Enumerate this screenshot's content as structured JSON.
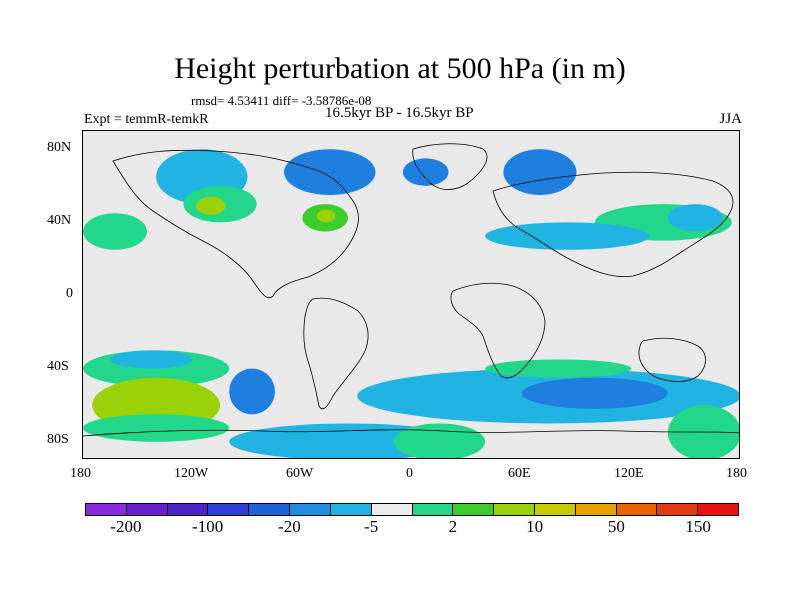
{
  "title": "Height perturbation at 500 hPa (in m)",
  "stats": "rmsd= 4.53411 diff= -3.58786e-08",
  "expt": "Expt = temmR-temkR",
  "period": "16.5kyr BP - 16.5kyr BP",
  "season": "JJA",
  "chart_data": {
    "type": "heatmap",
    "projection": "cylindrical-equidistant",
    "lon_range": [
      -180,
      180
    ],
    "lat_range": [
      -90,
      90
    ],
    "x_tick_labels": [
      "180",
      "120W",
      "60W",
      "0",
      "60E",
      "120E",
      "180"
    ],
    "x_ticks": [
      -180,
      -120,
      -60,
      0,
      60,
      120,
      180
    ],
    "y_tick_labels": [
      "80N",
      "40N",
      "0",
      "40S",
      "80S"
    ],
    "y_ticks": [
      80,
      40,
      0,
      -40,
      -80
    ],
    "colorbar": {
      "colors": [
        "#8a2be2",
        "#6a1fd0",
        "#4b22c8",
        "#2f3fd4",
        "#1e64d8",
        "#1e8ee0",
        "#22b4e0",
        "#ebebeb",
        "#22d68a",
        "#3ccc2c",
        "#9ad20a",
        "#c8c800",
        "#e8a000",
        "#e86400",
        "#e03c10",
        "#e81010"
      ],
      "labels": [
        "-200",
        "-100",
        "-20",
        "-5",
        "2",
        "10",
        "50",
        "150"
      ],
      "label_positions": [
        1,
        3,
        5,
        7,
        9,
        11,
        13,
        15
      ]
    },
    "regions": [
      {
        "level": "lightblue",
        "value": -3,
        "lon": [
          -140,
          -90
        ],
        "lat": [
          50,
          80
        ]
      },
      {
        "level": "blue",
        "value": -8,
        "lon": [
          -70,
          -20
        ],
        "lat": [
          55,
          80
        ]
      },
      {
        "level": "blue",
        "value": -8,
        "lon": [
          -5,
          20
        ],
        "lat": [
          60,
          75
        ]
      },
      {
        "level": "blue",
        "value": -8,
        "lon": [
          50,
          90
        ],
        "lat": [
          55,
          80
        ]
      },
      {
        "level": "lightgreen",
        "value": 5,
        "lon": [
          -125,
          -85
        ],
        "lat": [
          40,
          60
        ]
      },
      {
        "level": "yellowgreen",
        "value": 20,
        "lon": [
          -118,
          -102
        ],
        "lat": [
          44,
          54
        ]
      },
      {
        "level": "green",
        "value": 8,
        "lon": [
          -60,
          -35
        ],
        "lat": [
          35,
          50
        ]
      },
      {
        "level": "yellowgreen",
        "value": 20,
        "lon": [
          -52,
          -42
        ],
        "lat": [
          40,
          47
        ]
      },
      {
        "level": "lightgreen",
        "value": 5,
        "lon": [
          100,
          175
        ],
        "lat": [
          30,
          50
        ]
      },
      {
        "level": "lightblue",
        "value": -3,
        "lon": [
          140,
          170
        ],
        "lat": [
          35,
          50
        ]
      },
      {
        "level": "lightblue",
        "value": -3,
        "lon": [
          40,
          130
        ],
        "lat": [
          25,
          40
        ]
      },
      {
        "level": "lightgreen",
        "value": 5,
        "lon": [
          -180,
          -145
        ],
        "lat": [
          25,
          45
        ]
      },
      {
        "level": "lightgreen",
        "value": 5,
        "lon": [
          -180,
          -100
        ],
        "lat": [
          -50,
          -30
        ]
      },
      {
        "level": "lightblue",
        "value": -3,
        "lon": [
          -165,
          -120
        ],
        "lat": [
          -40,
          -30
        ]
      },
      {
        "level": "yellowgreen",
        "value": 20,
        "lon": [
          -175,
          -105
        ],
        "lat": [
          -75,
          -45
        ]
      },
      {
        "level": "lightgreen",
        "value": 5,
        "lon": [
          -180,
          -100
        ],
        "lat": [
          -80,
          -65
        ]
      },
      {
        "level": "blue",
        "value": -8,
        "lon": [
          -100,
          -75
        ],
        "lat": [
          -65,
          -40
        ]
      },
      {
        "level": "lightblue",
        "value": -3,
        "lon": [
          -100,
          30
        ],
        "lat": [
          -90,
          -70
        ]
      },
      {
        "level": "lightgreen",
        "value": 5,
        "lon": [
          -10,
          40
        ],
        "lat": [
          -90,
          -70
        ]
      },
      {
        "level": "lightblue",
        "value": -3,
        "lon": [
          -30,
          180
        ],
        "lat": [
          -70,
          -40
        ]
      },
      {
        "level": "blue",
        "value": -8,
        "lon": [
          60,
          140
        ],
        "lat": [
          -62,
          -45
        ]
      },
      {
        "level": "lightgreen",
        "value": 5,
        "lon": [
          40,
          120
        ],
        "lat": [
          -45,
          -35
        ]
      },
      {
        "level": "lightgreen",
        "value": 5,
        "lon": [
          140,
          180
        ],
        "lat": [
          -90,
          -60
        ]
      }
    ]
  }
}
